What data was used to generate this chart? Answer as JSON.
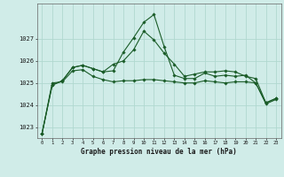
{
  "title": "Graphe pression niveau de la mer (hPa)",
  "background_color": "#d0ece8",
  "grid_color": "#b0d8d0",
  "line_color": "#1a5c28",
  "xlim": [
    -0.5,
    23.5
  ],
  "ylim": [
    1022.5,
    1028.6
  ],
  "yticks": [
    1023,
    1024,
    1025,
    1026,
    1027
  ],
  "xticks": [
    0,
    1,
    2,
    3,
    4,
    5,
    6,
    7,
    8,
    9,
    10,
    11,
    12,
    13,
    14,
    15,
    16,
    17,
    18,
    19,
    20,
    21,
    22,
    23
  ],
  "series": [
    [
      1022.7,
      1025.0,
      1025.05,
      1025.55,
      1025.6,
      1025.3,
      1025.15,
      1025.05,
      1025.1,
      1025.1,
      1025.15,
      1025.15,
      1025.1,
      1025.05,
      1025.0,
      1025.0,
      1025.1,
      1025.05,
      1025.0,
      1025.05,
      1025.05,
      1025.0,
      1024.05,
      1024.25
    ],
    [
      1022.7,
      1024.9,
      1025.1,
      1025.7,
      1025.8,
      1025.65,
      1025.5,
      1025.55,
      1026.4,
      1027.05,
      1027.75,
      1028.1,
      1026.65,
      1025.35,
      1025.2,
      1025.2,
      1025.45,
      1025.3,
      1025.35,
      1025.3,
      1025.35,
      1025.0,
      1024.1,
      1024.3
    ],
    [
      1022.7,
      1024.9,
      1025.1,
      1025.7,
      1025.8,
      1025.65,
      1025.5,
      1025.85,
      1026.0,
      1026.5,
      1027.35,
      1026.95,
      1026.35,
      1025.85,
      1025.3,
      1025.4,
      1025.5,
      1025.5,
      1025.55,
      1025.5,
      1025.3,
      1025.2,
      1024.1,
      1024.3
    ]
  ]
}
